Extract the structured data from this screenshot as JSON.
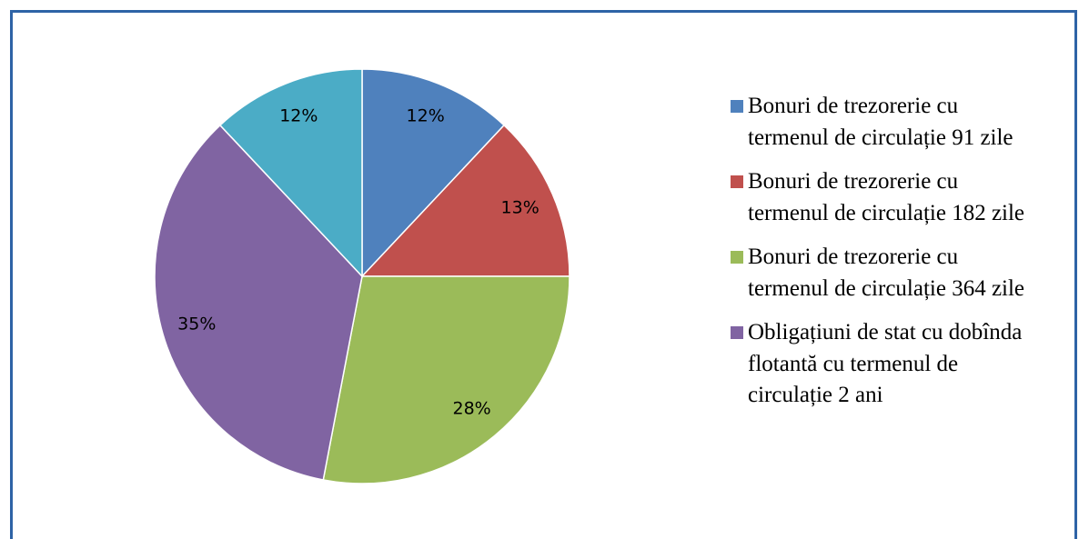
{
  "chart_data": {
    "type": "pie",
    "categories": [
      "Bonuri de trezorerie cu termenul de circulație 91 zile",
      "Bonuri de trezorerie cu termenul de circulație 182 zile",
      "Bonuri de trezorerie cu termenul de circulație 364 zile",
      "Obligațiuni de stat cu dobînda flotantă cu termenul de circulație 2 ani",
      null
    ],
    "values": [
      12,
      13,
      28,
      35,
      12
    ],
    "value_labels": [
      "12%",
      "13%",
      "28%",
      "35%",
      "12%"
    ],
    "colors": [
      "#4f81bd",
      "#c0504d",
      "#9bbb59",
      "#8064a2",
      "#4bacc6"
    ],
    "legend": "right"
  }
}
